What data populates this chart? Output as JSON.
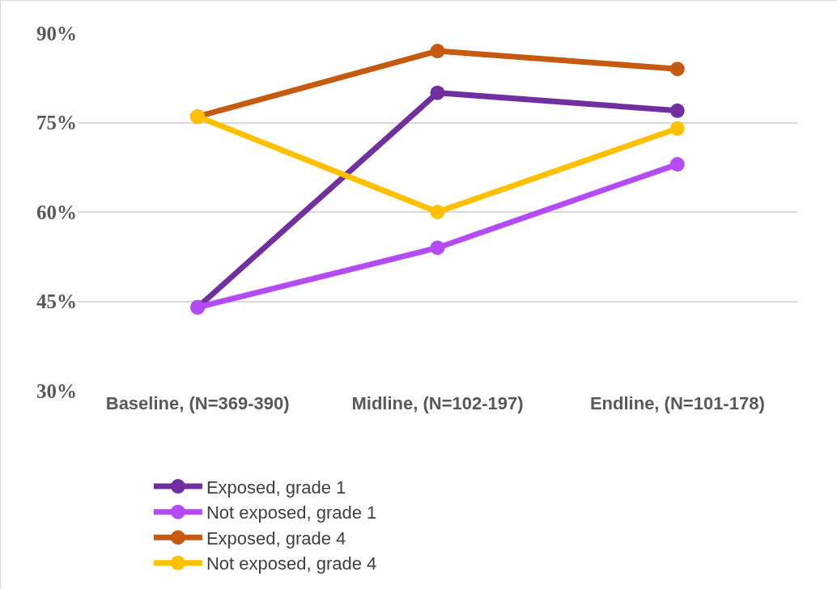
{
  "chart_data": {
    "type": "line",
    "categories": [
      "Baseline, (N=369-390)",
      "Midline, (N=102-197)",
      "Endline, (N=101-178)"
    ],
    "series": [
      {
        "name": "Exposed, grade 1",
        "color": "#7030a0",
        "values": [
          44,
          80,
          77
        ]
      },
      {
        "name": "Not exposed, grade 1",
        "color": "#b44cf5",
        "values": [
          44,
          54,
          68
        ]
      },
      {
        "name": "Exposed, grade 4",
        "color": "#c55a11",
        "values": [
          76,
          87,
          84
        ]
      },
      {
        "name": "Not exposed, grade 4",
        "color": "#ffc000",
        "values": [
          76,
          60,
          74
        ]
      }
    ],
    "ylim": [
      30,
      90
    ],
    "yticks": [
      {
        "value": 30,
        "label": "30%"
      },
      {
        "value": 45,
        "label": "45%"
      },
      {
        "value": 60,
        "label": "60%"
      },
      {
        "value": 75,
        "label": "75%"
      },
      {
        "value": 90,
        "label": "90%"
      }
    ],
    "grid": "y",
    "legend": "bottom",
    "marker": "circle",
    "line_style": "solid"
  }
}
